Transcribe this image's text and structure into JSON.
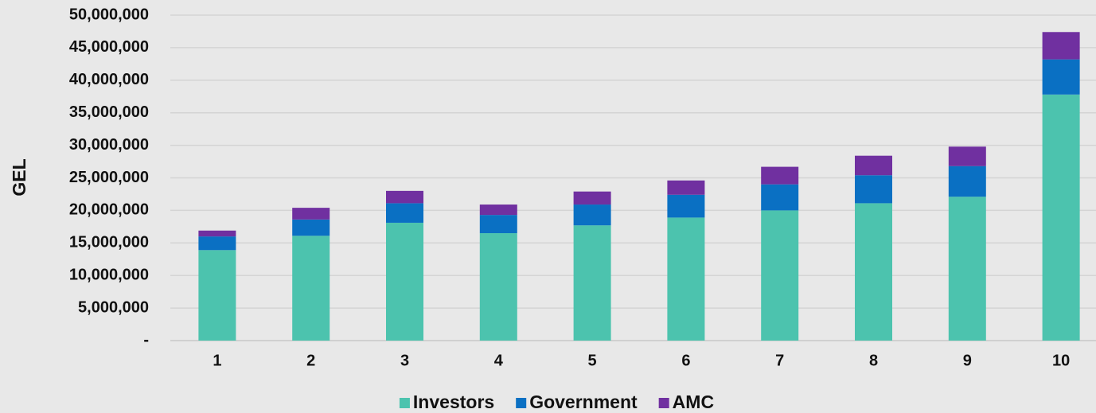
{
  "chart_data": {
    "type": "stacked_bar",
    "ylabel": "GEL",
    "categories": [
      "1",
      "2",
      "3",
      "4",
      "5",
      "6",
      "7",
      "8",
      "9",
      "10"
    ],
    "series": [
      {
        "name": "Investors",
        "color": "#4cc3ae",
        "values": [
          13900000,
          16100000,
          18100000,
          16500000,
          17700000,
          18900000,
          20000000,
          21100000,
          22100000,
          37800000
        ]
      },
      {
        "name": "Government",
        "color": "#0a70c3",
        "values": [
          2100000,
          2500000,
          3000000,
          2800000,
          3200000,
          3500000,
          4000000,
          4300000,
          4700000,
          5400000
        ]
      },
      {
        "name": "AMC",
        "color": "#7030a0",
        "values": [
          900000,
          1800000,
          1900000,
          1600000,
          2000000,
          2200000,
          2700000,
          3000000,
          3000000,
          4200000
        ]
      }
    ],
    "ylim": [
      0,
      50000000
    ],
    "yticks": [
      {
        "value": 0,
        "label": "-"
      },
      {
        "value": 5000000,
        "label": "5,000,000"
      },
      {
        "value": 10000000,
        "label": "10,000,000"
      },
      {
        "value": 15000000,
        "label": "15,000,000"
      },
      {
        "value": 20000000,
        "label": "20,000,000"
      },
      {
        "value": 25000000,
        "label": "25,000,000"
      },
      {
        "value": 30000000,
        "label": "30,000,000"
      },
      {
        "value": 35000000,
        "label": "35,000,000"
      },
      {
        "value": 40000000,
        "label": "40,000,000"
      },
      {
        "value": 45000000,
        "label": "45,000,000"
      },
      {
        "value": 50000000,
        "label": "50,000,000"
      }
    ],
    "grid": true,
    "legend": "bottom"
  }
}
